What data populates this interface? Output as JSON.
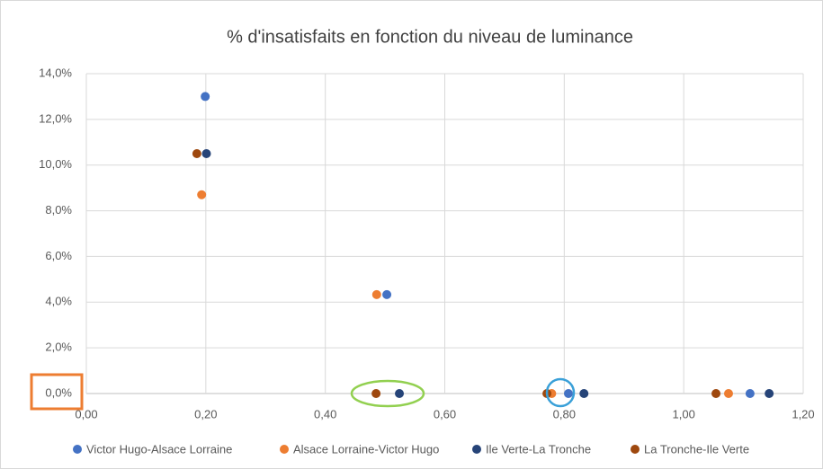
{
  "chart_data": {
    "type": "scatter",
    "title": "% d'insatisfaits en fonction du niveau de luminance",
    "xlim": [
      0,
      1.2
    ],
    "xticks": [
      {
        "value": 0,
        "label": "0,00"
      },
      {
        "value": 0.2,
        "label": "0,20"
      },
      {
        "value": 0.4,
        "label": "0,40"
      },
      {
        "value": 0.6,
        "label": "0,60"
      },
      {
        "value": 0.8,
        "label": "0,80"
      },
      {
        "value": 1.0,
        "label": "1,00"
      },
      {
        "value": 1.2,
        "label": "1,20"
      }
    ],
    "ylim": [
      0,
      14
    ],
    "yticks": [
      {
        "value": 0,
        "label": "0,0%"
      },
      {
        "value": 2,
        "label": "2,0%"
      },
      {
        "value": 4,
        "label": "4,0%"
      },
      {
        "value": 6,
        "label": "6,0%"
      },
      {
        "value": 8,
        "label": "8,0%"
      },
      {
        "value": 10,
        "label": "10,0%"
      },
      {
        "value": 12,
        "label": "12,0%"
      },
      {
        "value": 14,
        "label": "14,0%"
      }
    ],
    "grid": true,
    "legend": "bottom",
    "series": [
      {
        "name": "Victor Hugo-Alsace Lorraine",
        "color": "#4472c4",
        "x": [
          0.199,
          0.503,
          0.807,
          1.111
        ],
        "values": [
          13.0,
          4.33,
          0,
          0
        ]
      },
      {
        "name": "Alsace Lorraine-Victor Hugo",
        "color": "#ed7d31",
        "x": [
          0.193,
          0.486,
          0.779,
          1.075
        ],
        "values": [
          8.7,
          4.33,
          0,
          0
        ]
      },
      {
        "name": "Ile Verte-La Tronche",
        "color": "#264478",
        "x": [
          0.201,
          0.524,
          0.833,
          1.143
        ],
        "values": [
          10.5,
          0,
          0,
          0
        ]
      },
      {
        "name": "La Tronche-Ile Verte",
        "color": "#9e480e",
        "x": [
          0.185,
          0.485,
          0.771,
          1.054
        ],
        "values": [
          10.5,
          0,
          0,
          0
        ]
      }
    ]
  }
}
